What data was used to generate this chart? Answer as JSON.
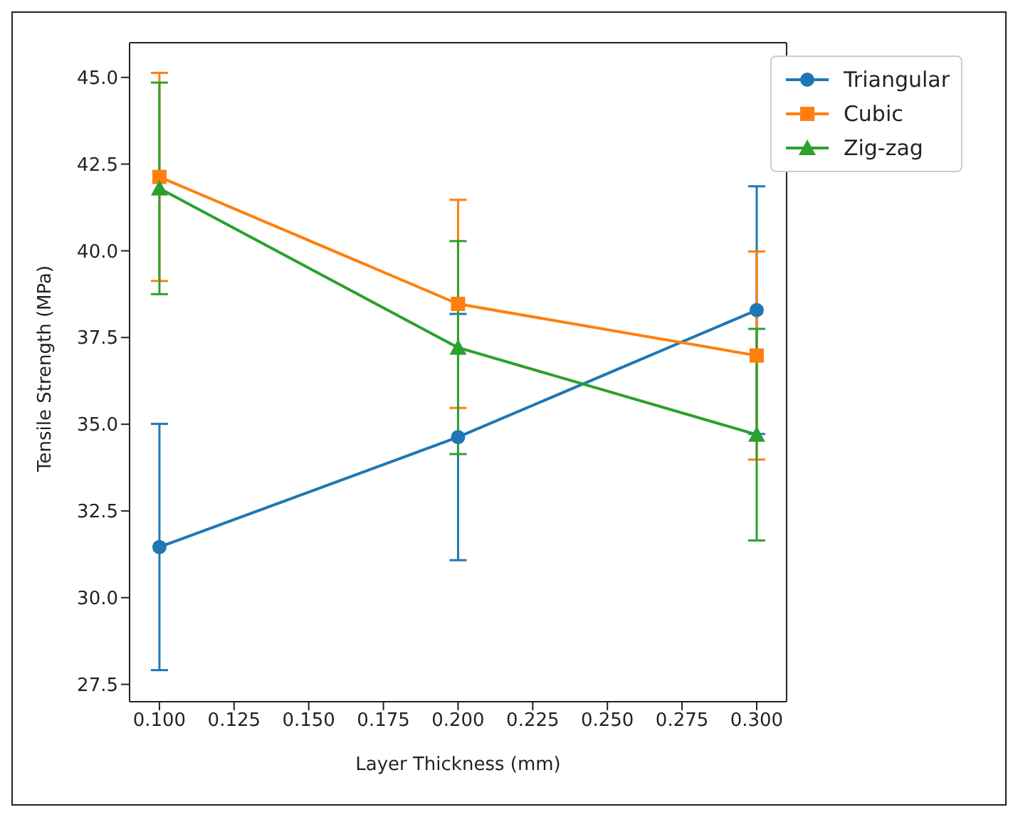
{
  "chart_data": {
    "type": "line",
    "xlabel": "Layer Thickness (mm)",
    "ylabel": "Tensile Strength (MPa)",
    "x": [
      0.1,
      0.2,
      0.3
    ],
    "xlim": [
      0.09,
      0.31
    ],
    "xticks": [
      {
        "value": 0.1,
        "label": "0.100"
      },
      {
        "value": 0.125,
        "label": "0.125"
      },
      {
        "value": 0.15,
        "label": "0.150"
      },
      {
        "value": 0.175,
        "label": "0.175"
      },
      {
        "value": 0.2,
        "label": "0.200"
      },
      {
        "value": 0.225,
        "label": "0.225"
      },
      {
        "value": 0.25,
        "label": "0.250"
      },
      {
        "value": 0.275,
        "label": "0.275"
      },
      {
        "value": 0.3,
        "label": "0.300"
      }
    ],
    "ylim": [
      27.0,
      46.0
    ],
    "yticks": [
      {
        "value": 27.5,
        "label": "27.5"
      },
      {
        "value": 30,
        "label": "30.0"
      },
      {
        "value": 32.5,
        "label": "32.5"
      },
      {
        "value": 35,
        "label": "35.0"
      },
      {
        "value": 37.5,
        "label": "37.5"
      },
      {
        "value": 40,
        "label": "40.0"
      },
      {
        "value": 42.5,
        "label": "42.5"
      },
      {
        "value": 45,
        "label": "45.0"
      }
    ],
    "series": [
      {
        "name": "Triangular",
        "color": "#1f77b4",
        "marker": "circle",
        "values": [
          31.46,
          34.63,
          38.29
        ],
        "errors": [
          3.55,
          3.55,
          3.57
        ]
      },
      {
        "name": "Cubic",
        "color": "#ff7f0e",
        "marker": "square",
        "values": [
          42.13,
          38.47,
          36.98
        ],
        "errors": [
          3.0,
          3.0,
          3.0
        ]
      },
      {
        "name": "Zig-zag",
        "color": "#2ca02c",
        "marker": "triangle",
        "values": [
          41.8,
          37.21,
          34.7
        ],
        "errors": [
          3.05,
          3.07,
          3.05
        ]
      }
    ],
    "grid": false,
    "legend": "top right"
  }
}
